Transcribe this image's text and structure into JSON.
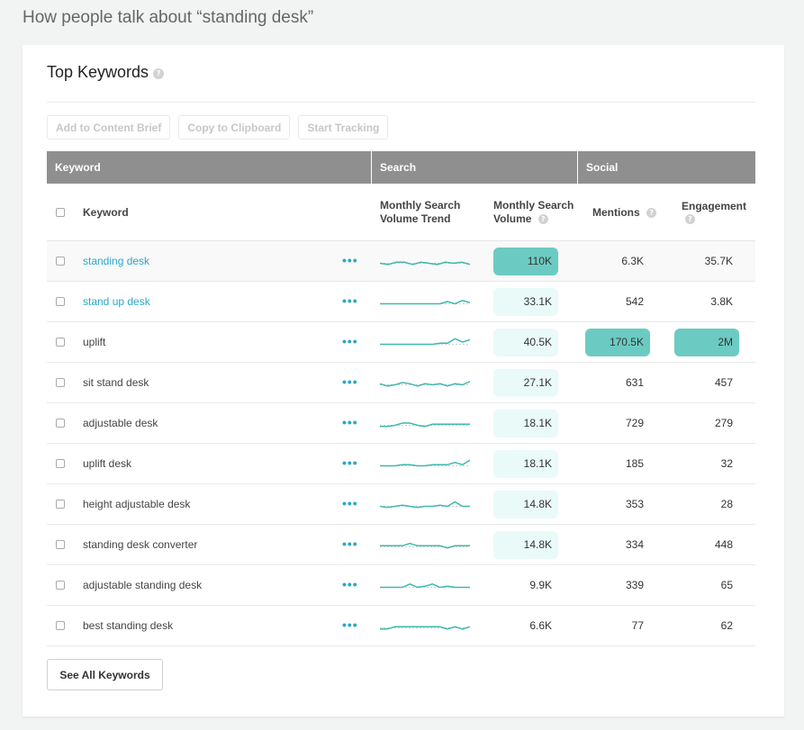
{
  "page_title": "How people talk about “standing desk”",
  "card": {
    "title": "Top Keywords",
    "help_icon": "question-icon"
  },
  "toolbar": {
    "add_brief": "Add to Content Brief",
    "copy": "Copy to Clipboard",
    "track": "Start Tracking"
  },
  "groups": {
    "keyword": "Keyword",
    "search": "Search",
    "social": "Social"
  },
  "columns": {
    "keyword": "Keyword",
    "trend": "Monthly Search Volume Trend",
    "volume": "Monthly Search Volume",
    "mentions": "Mentions",
    "engagement": "Engagement"
  },
  "colors": {
    "accent": "#2aa7c7",
    "trend_line": "#3fb9ac",
    "pill_high": "#6bcbc2",
    "pill_low": "#e9faf8",
    "group_header": "#8f8f8f"
  },
  "rows": [
    {
      "keyword": "standing desk",
      "link": true,
      "volume": "110K",
      "volume_level": 3,
      "mentions": "6.3K",
      "mentions_level": 0,
      "engagement": "35.7K",
      "engagement_level": 0,
      "trend": [
        6,
        7,
        5,
        5,
        7,
        5,
        6,
        7,
        5,
        6,
        5,
        7
      ]
    },
    {
      "keyword": "stand up desk",
      "link": true,
      "volume": "33.1K",
      "volume_level": 1,
      "mentions": "542",
      "mentions_level": 0,
      "engagement": "3.8K",
      "engagement_level": 0,
      "trend": [
        6,
        6,
        6,
        6,
        6,
        6,
        6,
        6,
        6,
        4,
        6,
        3,
        5
      ]
    },
    {
      "keyword": "uplift",
      "link": false,
      "volume": "40.5K",
      "volume_level": 1,
      "mentions": "170.5K",
      "mentions_level": 3,
      "engagement": "2M",
      "engagement_level": 3,
      "trend": [
        6,
        6,
        6,
        6,
        6,
        6,
        6,
        6,
        5,
        5,
        1,
        4,
        2
      ]
    },
    {
      "keyword": "sit stand desk",
      "link": false,
      "volume": "27.1K",
      "volume_level": 1,
      "mentions": "631",
      "mentions_level": 0,
      "engagement": "457",
      "engagement_level": 0,
      "trend": [
        5,
        7,
        6,
        4,
        5,
        7,
        5,
        6,
        5,
        7,
        5,
        6,
        3
      ]
    },
    {
      "keyword": "adjustable desk",
      "link": false,
      "volume": "18.1K",
      "volume_level": 1,
      "mentions": "729",
      "mentions_level": 0,
      "engagement": "279",
      "engagement_level": 0,
      "trend": [
        7,
        7,
        6,
        4,
        4,
        6,
        7,
        5,
        5,
        5,
        5,
        5,
        5
      ]
    },
    {
      "keyword": "uplift desk",
      "link": false,
      "volume": "18.1K",
      "volume_level": 1,
      "mentions": "185",
      "mentions_level": 0,
      "engagement": "32",
      "engagement_level": 0,
      "trend": [
        6,
        6,
        6,
        5,
        5,
        6,
        6,
        5,
        5,
        5,
        3,
        5,
        1
      ]
    },
    {
      "keyword": "height adjustable desk",
      "link": false,
      "volume": "14.8K",
      "volume_level": 1,
      "mentions": "353",
      "mentions_level": 0,
      "engagement": "28",
      "engagement_level": 0,
      "trend": [
        6,
        7,
        6,
        5,
        6,
        7,
        6,
        6,
        5,
        6,
        2,
        6,
        6
      ]
    },
    {
      "keyword": "standing desk converter",
      "link": false,
      "volume": "14.8K",
      "volume_level": 1,
      "mentions": "334",
      "mentions_level": 0,
      "engagement": "448",
      "engagement_level": 0,
      "trend": [
        5,
        5,
        5,
        5,
        3,
        5,
        5,
        5,
        5,
        7,
        5,
        5,
        5
      ]
    },
    {
      "keyword": "adjustable standing desk",
      "link": false,
      "volume": "9.9K",
      "volume_level": 0,
      "mentions": "339",
      "mentions_level": 0,
      "engagement": "65",
      "engagement_level": 0,
      "trend": [
        6,
        6,
        6,
        6,
        3,
        6,
        5,
        3,
        6,
        5,
        6,
        6,
        6
      ]
    },
    {
      "keyword": "best standing desk",
      "link": false,
      "volume": "6.6K",
      "volume_level": 0,
      "mentions": "77",
      "mentions_level": 0,
      "engagement": "62",
      "engagement_level": 0,
      "trend": [
        7,
        7,
        5,
        5,
        5,
        5,
        5,
        5,
        5,
        7,
        5,
        7,
        5
      ]
    }
  ],
  "see_all": "See All Keywords"
}
